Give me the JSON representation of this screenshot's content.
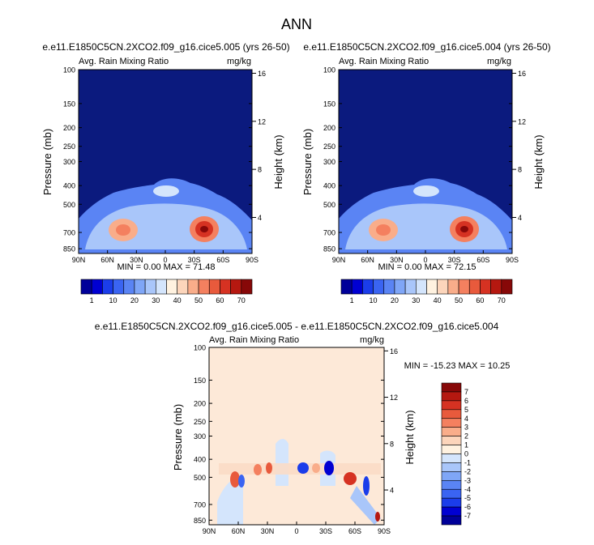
{
  "figure_title": "ANN",
  "colors": {
    "bg": "#0b1a7e",
    "palette": [
      "#000099",
      "#0000d2",
      "#1b3dea",
      "#3a64f2",
      "#5a84f4",
      "#7fa6f7",
      "#a9c6fa",
      "#d4e5fc",
      "#fff2e0",
      "#fcd5bb",
      "#f9ad8a",
      "#f4805f",
      "#e85a3c",
      "#d63222",
      "#b51810",
      "#870808"
    ]
  },
  "chart_data": [
    {
      "type": "heatmap",
      "panel": "case",
      "title": "e.e11.E1850C5CN.2XCO2.f09_g16.cice5.005 (yrs 26-50)",
      "left_label": "Avg. Rain Mixing Ratio",
      "units": "mg/kg",
      "xlabel": "",
      "ylabel": "Pressure (mb)",
      "ylabel_right": "Height (km)",
      "x_ticks": [
        "90N",
        "60N",
        "30N",
        "0",
        "30S",
        "60S",
        "90S"
      ],
      "y_ticks": [
        "100",
        "150",
        "200",
        "250",
        "300",
        "400",
        "500",
        "700",
        "850"
      ],
      "y_values": [
        100,
        150,
        200,
        250,
        300,
        400,
        500,
        700,
        850
      ],
      "ylim": [
        1000,
        100
      ],
      "height_ticks": [
        "16",
        "12",
        "8",
        "4"
      ],
      "height_values": [
        16,
        12,
        8,
        4
      ],
      "stats": "MIN =  0.00  MAX = 71.48",
      "min": 0.0,
      "max": 71.48,
      "colorbar_levels": [
        "1",
        "5",
        "10",
        "15",
        "20",
        "25",
        "30",
        "35",
        "40",
        "45",
        "50",
        "55",
        "60",
        "65",
        "70"
      ],
      "colorbar_labels": [
        "1",
        "10",
        "20",
        "30",
        "40",
        "50",
        "60",
        "70"
      ],
      "features": [
        {
          "lat": 31,
          "p": 700,
          "value": 45,
          "desc": "NH subtropical maximum"
        },
        {
          "lat": -33,
          "p": 700,
          "value": 71,
          "desc": "SH subtropical maximum"
        },
        {
          "lat": 0,
          "p": 450,
          "value": 20,
          "desc": "equatorial elevated band"
        }
      ]
    },
    {
      "type": "heatmap",
      "panel": "control",
      "title": "e.e11.E1850C5CN.2XCO2.f09_g16.cice5.004 (yrs 26-50)",
      "left_label": "Avg. Rain Mixing Ratio",
      "units": "mg/kg",
      "xlabel": "",
      "ylabel": "Pressure (mb)",
      "ylabel_right": "Height (km)",
      "x_ticks": [
        "90N",
        "60N",
        "30N",
        "0",
        "30S",
        "60S",
        "90S"
      ],
      "y_ticks": [
        "100",
        "150",
        "200",
        "250",
        "300",
        "400",
        "500",
        "700",
        "850"
      ],
      "y_values": [
        100,
        150,
        200,
        250,
        300,
        400,
        500,
        700,
        850
      ],
      "ylim": [
        1000,
        100
      ],
      "height_ticks": [
        "16",
        "12",
        "8",
        "4"
      ],
      "height_values": [
        16,
        12,
        8,
        4
      ],
      "stats": "MIN =  0.00  MAX = 72.15",
      "min": 0.0,
      "max": 72.15,
      "colorbar_levels": [
        "1",
        "5",
        "10",
        "15",
        "20",
        "25",
        "30",
        "35",
        "40",
        "45",
        "50",
        "55",
        "60",
        "65",
        "70"
      ],
      "colorbar_labels": [
        "1",
        "10",
        "20",
        "30",
        "40",
        "50",
        "60",
        "70"
      ],
      "features": [
        {
          "lat": 31,
          "p": 700,
          "value": 45,
          "desc": "NH subtropical maximum"
        },
        {
          "lat": -33,
          "p": 700,
          "value": 72,
          "desc": "SH subtropical maximum"
        },
        {
          "lat": 0,
          "p": 450,
          "value": 20,
          "desc": "equatorial elevated band"
        }
      ]
    },
    {
      "type": "heatmap",
      "panel": "difference",
      "title": "e.e11.E1850C5CN.2XCO2.f09_g16.cice5.005 - e.e11.E1850C5CN.2XCO2.f09_g16.cice5.004",
      "left_label": "Avg. Rain Mixing Ratio",
      "units": "mg/kg",
      "xlabel": "",
      "ylabel": "Pressure (mb)",
      "ylabel_right": "Height (km)",
      "x_ticks": [
        "90N",
        "60N",
        "30N",
        "0",
        "30S",
        "60S",
        "90S"
      ],
      "y_ticks": [
        "100",
        "150",
        "200",
        "250",
        "300",
        "400",
        "500",
        "700",
        "850"
      ],
      "y_values": [
        100,
        150,
        200,
        250,
        300,
        400,
        500,
        700,
        850
      ],
      "ylim": [
        1000,
        100
      ],
      "height_ticks": [
        "16",
        "12",
        "8",
        "4"
      ],
      "height_values": [
        16,
        12,
        8,
        4
      ],
      "stats": "MIN = -15.23  MAX =  10.25",
      "min": -15.23,
      "max": 10.25,
      "colorbar_labels": [
        "7",
        "6",
        "5",
        "4",
        "3",
        "2",
        "1",
        "0",
        "-1",
        "-2",
        "-3",
        "-4",
        "-5",
        "-6",
        "-7"
      ],
      "features": [
        {
          "lat": -63,
          "p": 480,
          "value": 6,
          "desc": "positive anomaly near 60S"
        },
        {
          "lat": -38,
          "p": 470,
          "value": -6,
          "desc": "negative anomaly near 35S"
        },
        {
          "lat": 0,
          "p": 460,
          "value": -5,
          "desc": "negative anomaly at equator"
        }
      ]
    }
  ]
}
